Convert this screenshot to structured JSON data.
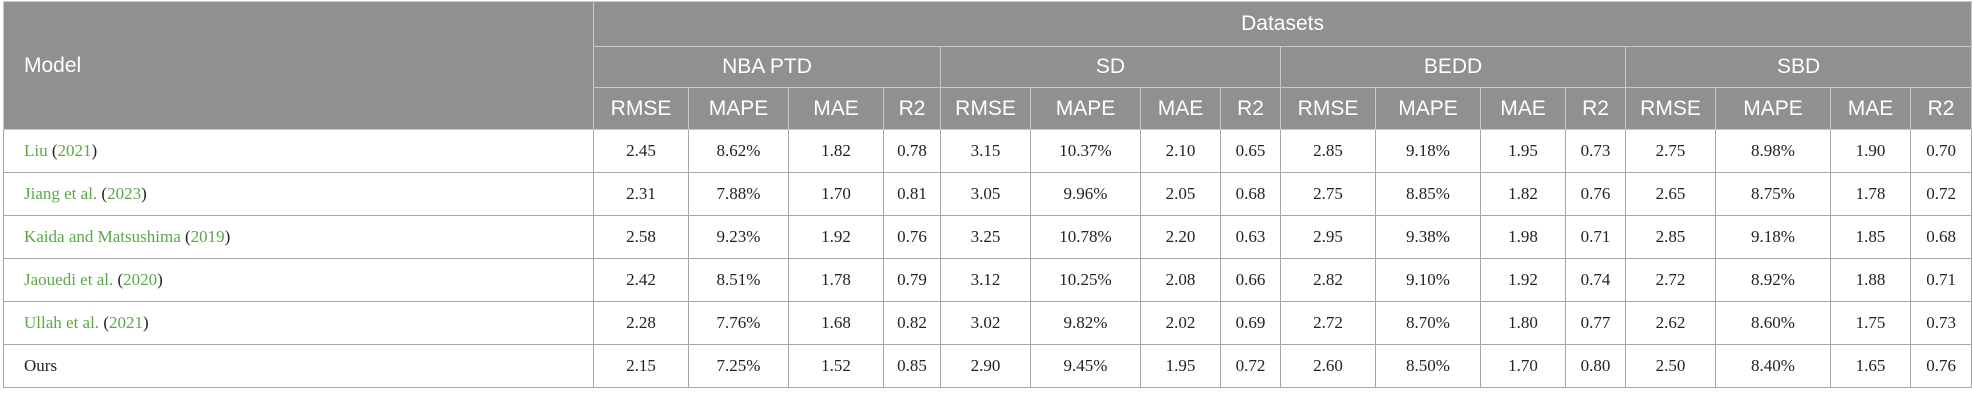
{
  "header": {
    "model_label": "Model",
    "datasets_label": "Datasets",
    "datasets": [
      "NBA PTD",
      "SD",
      "BEDD",
      "SBD"
    ],
    "metrics": [
      "RMSE",
      "MAPE",
      "MAE",
      "R2"
    ]
  },
  "rows": [
    {
      "name": "Liu",
      "year": "2021",
      "values": [
        "2.45",
        "8.62%",
        "1.82",
        "0.78",
        "3.15",
        "10.37%",
        "2.10",
        "0.65",
        "2.85",
        "9.18%",
        "1.95",
        "0.73",
        "2.75",
        "8.98%",
        "1.90",
        "0.70"
      ]
    },
    {
      "name": "Jiang et al.",
      "year": "2023",
      "values": [
        "2.31",
        "7.88%",
        "1.70",
        "0.81",
        "3.05",
        "9.96%",
        "2.05",
        "0.68",
        "2.75",
        "8.85%",
        "1.82",
        "0.76",
        "2.65",
        "8.75%",
        "1.78",
        "0.72"
      ]
    },
    {
      "name": "Kaida and Matsushima",
      "year": "2019",
      "values": [
        "2.58",
        "9.23%",
        "1.92",
        "0.76",
        "3.25",
        "10.78%",
        "2.20",
        "0.63",
        "2.95",
        "9.38%",
        "1.98",
        "0.71",
        "2.85",
        "9.18%",
        "1.85",
        "0.68"
      ]
    },
    {
      "name": "Jaouedi et al.",
      "year": "2020",
      "values": [
        "2.42",
        "8.51%",
        "1.78",
        "0.79",
        "3.12",
        "10.25%",
        "2.08",
        "0.66",
        "2.82",
        "9.10%",
        "1.92",
        "0.74",
        "2.72",
        "8.92%",
        "1.88",
        "0.71"
      ]
    },
    {
      "name": "Ullah et al.",
      "year": "2021",
      "values": [
        "2.28",
        "7.76%",
        "1.68",
        "0.82",
        "3.02",
        "9.82%",
        "2.02",
        "0.69",
        "2.72",
        "8.70%",
        "1.80",
        "0.77",
        "2.62",
        "8.60%",
        "1.75",
        "0.73"
      ]
    },
    {
      "name": "Ours",
      "year": "",
      "values": [
        "2.15",
        "7.25%",
        "1.52",
        "0.85",
        "2.90",
        "9.45%",
        "1.95",
        "0.72",
        "2.60",
        "8.50%",
        "1.70",
        "0.80",
        "2.50",
        "8.40%",
        "1.65",
        "0.76"
      ]
    }
  ]
}
